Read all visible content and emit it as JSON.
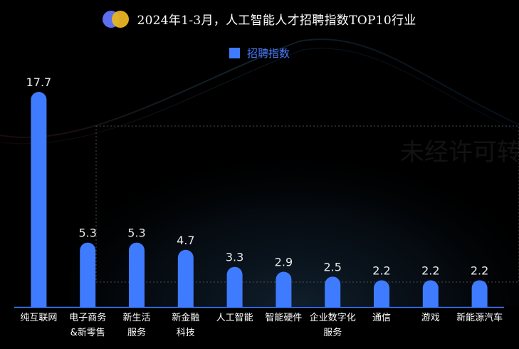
{
  "title": "2024年1-3月，人工智能人才招聘指数TOP10行业",
  "legend": {
    "label": "招聘指数",
    "color": "#3f7bff"
  },
  "watermark": "未经许可转载",
  "colors": {
    "bar": "#3f7bff",
    "axis": "#3f7bff",
    "value_text": "#e8e8e8",
    "tick_text": "#ffffff",
    "background": "#000000"
  },
  "chart_data": {
    "type": "bar",
    "title": "2024年1-3月，人工智能人才招聘指数TOP10行业",
    "categories": [
      [
        "纯互联网"
      ],
      [
        "电子商务",
        "&新零售"
      ],
      [
        "新生活",
        "服务"
      ],
      [
        "新金融",
        "科技"
      ],
      [
        "人工智能"
      ],
      [
        "智能硬件"
      ],
      [
        "企业数字化",
        "服务"
      ],
      [
        "通信"
      ],
      [
        "游戏"
      ],
      [
        "新能源汽车"
      ]
    ],
    "series": [
      {
        "name": "招聘指数",
        "values": [
          17.7,
          5.3,
          5.3,
          4.7,
          3.3,
          2.9,
          2.5,
          2.2,
          2.2,
          2.2
        ]
      }
    ],
    "ylim": [
      0,
      17.7
    ],
    "grid": false,
    "legend_position": "top-center",
    "data_labels": true
  }
}
